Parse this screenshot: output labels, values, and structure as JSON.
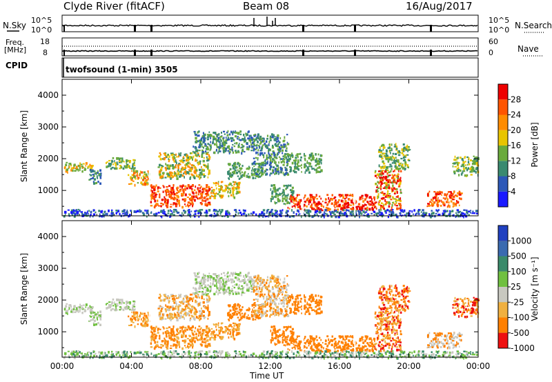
{
  "header": {
    "station": "Clyde River (fitACF)",
    "beam": "Beam 08",
    "date": "16/Aug/2017"
  },
  "noise_panel": {
    "left_label": "N.Sky",
    "right_label": "N.Search",
    "tick_top": "10^5",
    "tick_bottom": "10^0",
    "right_tick_top": "10^5",
    "right_tick_bottom": "10^0"
  },
  "freq_panel": {
    "left_label_line1": "Freq.",
    "left_label_line2": "[MHz]",
    "right_label": "Nave",
    "left_tick_top": "18",
    "left_tick_bottom": "8",
    "right_tick_top": "60",
    "right_tick_bottom": "0"
  },
  "cpid_panel": {
    "label": "CPID",
    "mode": "twofsound (1-min) 3505"
  },
  "chart_data": [
    {
      "type": "heatmap",
      "name_panel": "power",
      "ylabel": "Slant Range [km]",
      "xlabel": "Time UT",
      "x_ticks": [
        "00:00",
        "04:00",
        "08:00",
        "12:00",
        "16:00",
        "20:00",
        "00:00"
      ],
      "y_ticks": [
        "1000",
        "2000",
        "3000",
        "4000"
      ],
      "ylim": [
        200,
        4500
      ],
      "colorbar_label": "Power [dB]",
      "colorbar_ticks": [
        "4",
        "8",
        "12",
        "16",
        "20",
        "24",
        "28"
      ],
      "colorbar_colors": [
        "#1a1aff",
        "#2c58b8",
        "#3a8a70",
        "#6aaa3c",
        "#e8c400",
        "#ff8c00",
        "#ff5500",
        "#ee0000"
      ]
    },
    {
      "type": "heatmap",
      "name_panel": "velocity",
      "ylabel": "Slant Range [km]",
      "xlabel": "Time UT",
      "x_ticks": [
        "00:00",
        "04:00",
        "08:00",
        "12:00",
        "16:00",
        "20:00",
        "00:00"
      ],
      "y_ticks": [
        "1000",
        "2000",
        "3000",
        "4000"
      ],
      "ylim": [
        200,
        4500
      ],
      "colorbar_label": "Velocity [m s⁻¹]",
      "colorbar_ticks": [
        "1000",
        "500",
        "100",
        "25",
        "-25",
        "-100",
        "-500",
        "-1000"
      ],
      "colorbar_colors": [
        "#2040c0",
        "#3a6ab0",
        "#3a8a6a",
        "#70c040",
        "#c8c8c0",
        "#f0b040",
        "#ff8000",
        "#ee1010"
      ]
    }
  ],
  "time_label": "Time UT"
}
